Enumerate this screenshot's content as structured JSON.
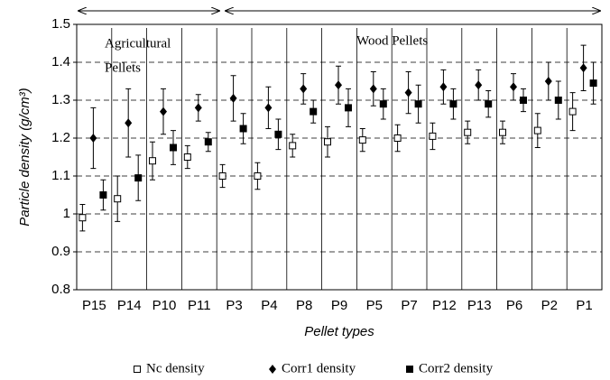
{
  "chart_data": {
    "type": "errorbar_scatter",
    "y_label": "Particle density (g/cm³)",
    "x_label": "Pellet types",
    "annotations": [
      "Agricultural",
      "Pellets",
      "Wood Pellets"
    ],
    "categories": [
      "P15",
      "P14",
      "P10",
      "P11",
      "P3",
      "P4",
      "P8",
      "P9",
      "P5",
      "P7",
      "P12",
      "P13",
      "P6",
      "P2",
      "P1"
    ],
    "series": [
      {
        "name": "Nc density",
        "marker": "open-square",
        "color": "#000",
        "values": [
          0.99,
          1.04,
          1.14,
          1.15,
          1.1,
          1.1,
          1.18,
          1.19,
          1.195,
          1.2,
          1.205,
          1.215,
          1.215,
          1.22,
          1.27
        ],
        "errors": [
          0.035,
          0.06,
          0.05,
          0.03,
          0.03,
          0.035,
          0.03,
          0.04,
          0.03,
          0.035,
          0.035,
          0.03,
          0.03,
          0.045,
          0.05
        ]
      },
      {
        "name": "Corr1 density",
        "marker": "diamond",
        "color": "#000",
        "values": [
          1.2,
          1.24,
          1.27,
          1.28,
          1.305,
          1.28,
          1.33,
          1.34,
          1.33,
          1.32,
          1.335,
          1.34,
          1.335,
          1.35,
          1.385
        ],
        "errors": [
          0.08,
          0.09,
          0.06,
          0.035,
          0.06,
          0.055,
          0.04,
          0.05,
          0.045,
          0.055,
          0.045,
          0.04,
          0.035,
          0.05,
          0.06
        ]
      },
      {
        "name": "Corr2 density",
        "marker": "square",
        "color": "#000",
        "values": [
          1.05,
          1.095,
          1.175,
          1.19,
          1.225,
          1.21,
          1.27,
          1.28,
          1.29,
          1.29,
          1.29,
          1.29,
          1.3,
          1.3,
          1.345
        ],
        "errors": [
          0.04,
          0.06,
          0.045,
          0.025,
          0.04,
          0.04,
          0.03,
          0.05,
          0.04,
          0.05,
          0.04,
          0.035,
          0.03,
          0.05,
          0.055
        ]
      }
    ],
    "ylim": [
      0.8,
      1.5
    ],
    "yticks": [
      0.8,
      0.9,
      1,
      1.1,
      1.2,
      1.3,
      1.4,
      1.5
    ],
    "grid": true,
    "legend": "bottom"
  }
}
